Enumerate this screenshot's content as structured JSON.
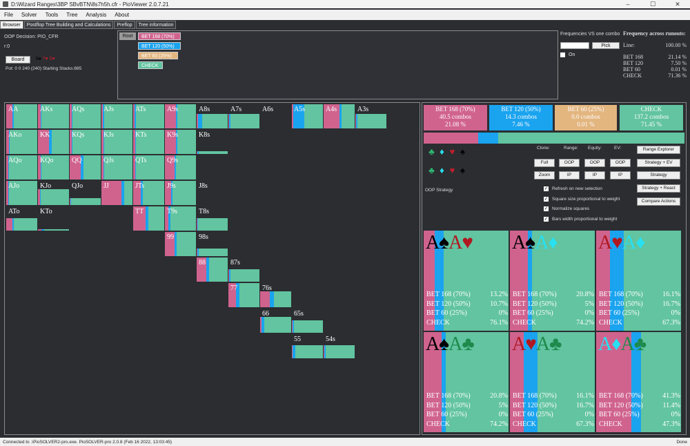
{
  "window": {
    "title": "D:\\Wizard Ranges\\3BP SBvBTN\\8s7h5h.cfr - PioViewer 2.0.7.21",
    "min": "–",
    "max": "☐",
    "close": "✕"
  },
  "menu": [
    "File",
    "Solver",
    "Tools",
    "Tree",
    "Analysis",
    "About"
  ],
  "tabs": [
    "Browser",
    "Postflop Tree Building and Calculations",
    "Preflop",
    "Tree information"
  ],
  "info": {
    "decision": "OOP Decision:  PIO_CFR",
    "r0": "r:0",
    "board_label": "Board",
    "board_cards": [
      "8♠",
      "7♥",
      "5♥"
    ],
    "pot": "Pot: 0 0 240 (240) Starting Stacks:885"
  },
  "tree": {
    "root": "Root",
    "nodes": [
      {
        "label": "BET 168 (70%)",
        "color": "#d0638e"
      },
      {
        "label": "BET 120 (50%)",
        "color": "#1aa3ef"
      },
      {
        "label": "BET 60 (25%)",
        "color": "#e3b57f"
      },
      {
        "label": "CHECK",
        "color": "#62c4a0"
      }
    ]
  },
  "fvc": {
    "title": "Frequencies VS one combo",
    "pick": "Pick",
    "on": "On"
  },
  "far": {
    "title": "Frequency across runouts:",
    "line_label": "Line:",
    "line_value": "100.00 %",
    "rows": [
      {
        "k": "BET 168",
        "v": "21.14 %"
      },
      {
        "k": "BET 120",
        "v": "7.50 %"
      },
      {
        "k": "BET 60",
        "v": "0.01 %"
      },
      {
        "k": "CHECK",
        "v": "71.36 %"
      }
    ]
  },
  "colors": {
    "bet168": "#d0638e",
    "bet120": "#1aa3ef",
    "bet60": "#e3b57f",
    "check": "#62c4a0"
  },
  "grid": [
    {
      "l": "AA",
      "r": 0,
      "c": 0,
      "h": 1,
      "f": [
        0.2,
        0.05,
        0,
        0.75
      ]
    },
    {
      "l": "AKs",
      "r": 0,
      "c": 1,
      "h": 1,
      "f": [
        0.08,
        0.04,
        0,
        0.88
      ]
    },
    {
      "l": "AQs",
      "r": 0,
      "c": 2,
      "h": 1,
      "f": [
        0.06,
        0.03,
        0,
        0.91
      ]
    },
    {
      "l": "AJs",
      "r": 0,
      "c": 3,
      "h": 1,
      "f": [
        0.05,
        0.03,
        0,
        0.92
      ]
    },
    {
      "l": "ATs",
      "r": 0,
      "c": 4,
      "h": 1,
      "f": [
        0.05,
        0.03,
        0,
        0.92
      ]
    },
    {
      "l": "A9s",
      "r": 0,
      "c": 5,
      "h": 1,
      "f": [
        0.35,
        0.05,
        0,
        0.6
      ]
    },
    {
      "l": "A8s",
      "r": 0,
      "c": 6,
      "h": 0.6,
      "f": [
        0.05,
        0.12,
        0,
        0.83
      ]
    },
    {
      "l": "A7s",
      "r": 0,
      "c": 7,
      "h": 0.6,
      "f": [
        0.03,
        0.03,
        0,
        0.94
      ]
    },
    {
      "l": "A6s",
      "r": 0,
      "c": 8,
      "h": 0,
      "f": [
        0,
        0,
        0,
        1
      ]
    },
    {
      "l": "A5s",
      "r": 0,
      "c": 9,
      "h": 1,
      "f": [
        0.05,
        0.35,
        0,
        0.6
      ]
    },
    {
      "l": "A4s",
      "r": 0,
      "c": 10,
      "h": 1,
      "f": [
        0.5,
        0.08,
        0,
        0.42
      ]
    },
    {
      "l": "A3s",
      "r": 0,
      "c": 11,
      "h": 0.6,
      "f": [
        0.03,
        0.03,
        0,
        0.94
      ]
    },
    {
      "l": "AKo",
      "r": 1,
      "c": 0,
      "h": 1,
      "f": [
        0.08,
        0.04,
        0,
        0.88
      ]
    },
    {
      "l": "KK",
      "r": 1,
      "c": 1,
      "h": 1,
      "f": [
        0.35,
        0.1,
        0,
        0.55
      ]
    },
    {
      "l": "KQs",
      "r": 1,
      "c": 2,
      "h": 1,
      "f": [
        0.06,
        0.04,
        0,
        0.9
      ]
    },
    {
      "l": "KJs",
      "r": 1,
      "c": 3,
      "h": 1,
      "f": [
        0.06,
        0.04,
        0,
        0.9
      ]
    },
    {
      "l": "KTs",
      "r": 1,
      "c": 4,
      "h": 1,
      "f": [
        0.06,
        0.04,
        0,
        0.9
      ]
    },
    {
      "l": "K9s",
      "r": 1,
      "c": 5,
      "h": 1,
      "f": [
        0.35,
        0.05,
        0,
        0.6
      ]
    },
    {
      "l": "K8s",
      "r": 1,
      "c": 6,
      "h": 0.12,
      "f": [
        0.02,
        0.05,
        0,
        0.93
      ]
    },
    {
      "l": "AQo",
      "r": 2,
      "c": 0,
      "h": 1,
      "f": [
        0.06,
        0.03,
        0,
        0.91
      ]
    },
    {
      "l": "KQo",
      "r": 2,
      "c": 1,
      "h": 1,
      "f": [
        0.08,
        0.04,
        0,
        0.88
      ]
    },
    {
      "l": "QQ",
      "r": 2,
      "c": 2,
      "h": 1,
      "f": [
        0.35,
        0.1,
        0,
        0.55
      ]
    },
    {
      "l": "QJs",
      "r": 2,
      "c": 3,
      "h": 1,
      "f": [
        0.06,
        0.03,
        0,
        0.91
      ]
    },
    {
      "l": "QTs",
      "r": 2,
      "c": 4,
      "h": 1,
      "f": [
        0.06,
        0.03,
        0,
        0.91
      ]
    },
    {
      "l": "Q9s",
      "r": 2,
      "c": 5,
      "h": 1,
      "f": [
        0.3,
        0.05,
        0,
        0.65
      ]
    },
    {
      "l": "AJo",
      "r": 3,
      "c": 0,
      "h": 1,
      "f": [
        0.06,
        0.03,
        0,
        0.91
      ]
    },
    {
      "l": "KJo",
      "r": 3,
      "c": 1,
      "h": 0.65,
      "f": [
        0.06,
        0.03,
        0,
        0.91
      ]
    },
    {
      "l": "QJo",
      "r": 3,
      "c": 2,
      "h": 0.28,
      "f": [
        0.03,
        0.02,
        0,
        0.95
      ]
    },
    {
      "l": "JJ",
      "r": 3,
      "c": 3,
      "h": 1,
      "f": [
        0.65,
        0.08,
        0,
        0.27
      ]
    },
    {
      "l": "JTs",
      "r": 3,
      "c": 4,
      "h": 1,
      "f": [
        0.25,
        0.05,
        0,
        0.7
      ]
    },
    {
      "l": "J9s",
      "r": 3,
      "c": 5,
      "h": 1,
      "f": [
        0.2,
        0.05,
        0,
        0.75
      ]
    },
    {
      "l": "J8s",
      "r": 3,
      "c": 6,
      "h": 0,
      "f": [
        0,
        0,
        0,
        1
      ]
    },
    {
      "l": "ATo",
      "r": 4,
      "c": 0,
      "h": 0.5,
      "f": [
        0.2,
        0.05,
        0,
        0.75
      ]
    },
    {
      "l": "KTo",
      "r": 4,
      "c": 1,
      "h": 0.05,
      "f": [
        0.1,
        0.1,
        0,
        0.8
      ]
    },
    {
      "l": "TT",
      "r": 4,
      "c": 4,
      "h": 1,
      "f": [
        0.4,
        0.08,
        0,
        0.52
      ]
    },
    {
      "l": "T9s",
      "r": 4,
      "c": 5,
      "h": 1,
      "f": [
        0.1,
        0.08,
        0,
        0.82
      ]
    },
    {
      "l": "T8s",
      "r": 4,
      "c": 6,
      "h": 0.5,
      "f": [
        0.02,
        0.02,
        0,
        0.96
      ]
    },
    {
      "l": "99",
      "r": 5,
      "c": 5,
      "h": 1,
      "f": [
        0.3,
        0.08,
        0,
        0.62
      ]
    },
    {
      "l": "98s",
      "r": 5,
      "c": 6,
      "h": 0.3,
      "f": [
        0.03,
        0.03,
        0,
        0.94
      ]
    },
    {
      "l": "88",
      "r": 6,
      "c": 6,
      "h": 1,
      "f": [
        0.3,
        0.1,
        0,
        0.6
      ]
    },
    {
      "l": "87s",
      "r": 6,
      "c": 7,
      "h": 0.5,
      "f": [
        0.03,
        0.03,
        0,
        0.94
      ]
    },
    {
      "l": "77",
      "r": 7,
      "c": 7,
      "h": 1,
      "f": [
        0.25,
        0.1,
        0,
        0.65
      ]
    },
    {
      "l": "76s",
      "r": 7,
      "c": 8,
      "h": 0.65,
      "f": [
        0.3,
        0.15,
        0,
        0.55
      ]
    },
    {
      "l": "66",
      "r": 8,
      "c": 8,
      "h": 0.65,
      "f": [
        0.05,
        0.08,
        0,
        0.87
      ]
    },
    {
      "l": "65s",
      "r": 8,
      "c": 9,
      "h": 0.5,
      "f": [
        0.03,
        0.03,
        0,
        0.94
      ]
    },
    {
      "l": "55",
      "r": 9,
      "c": 9,
      "h": 0.55,
      "f": [
        0.03,
        0.08,
        0,
        0.89
      ]
    },
    {
      "l": "54s",
      "r": 9,
      "c": 10,
      "h": 0.55,
      "f": [
        0.03,
        0.03,
        0,
        0.94
      ]
    }
  ],
  "actions": [
    {
      "name": "BET 168 (70%)",
      "combos": "40.5 combos",
      "pct": "21.08 %",
      "color": "#d0638e",
      "frac": 0.21
    },
    {
      "name": "BET 120 (50%)",
      "combos": "14.3 combos",
      "pct": "7.46 %",
      "color": "#1aa3ef",
      "frac": 0.075
    },
    {
      "name": "BET 60 (25%)",
      "combos": "0.0 combos",
      "pct": "0.01 %",
      "color": "#e3b57f",
      "frac": 0.0
    },
    {
      "name": "CHECK",
      "combos": "137.2 combos",
      "pct": "71.45 %",
      "color": "#62c4a0",
      "frac": 0.715
    }
  ],
  "controls": {
    "clone": "Clone:",
    "range": "Range:",
    "equity": "Equity:",
    "ev": "EV:",
    "full": "Full",
    "zoom": "Zoom",
    "oop": "OOP",
    "ip": "IP",
    "range_explorer": "Range Explorer",
    "strategy_ev": "Strategy + EV",
    "strategy": "Strategy",
    "strategy_react": "Strategy + React",
    "compare": "Compare Actions",
    "oop_strategy": "OOP Strategy",
    "checks": [
      "Refresh on new selection",
      "Square size proportional to weight",
      "Normalize squares",
      "Bars width proportional to weight"
    ]
  },
  "suits": [
    {
      "g": "♣",
      "color": "#2eb872"
    },
    {
      "g": "♦",
      "color": "#28e0f0"
    },
    {
      "g": "♥",
      "color": "#c0202c"
    },
    {
      "g": "♠",
      "color": "#000000"
    }
  ],
  "runouts": [
    {
      "cards": [
        {
          "t": "A",
          "s": "♠",
          "c": "#000"
        },
        {
          "t": "A",
          "s": "♥",
          "c": "#b01820"
        }
      ],
      "vals": [
        "13.2%",
        "10.7%",
        "0%",
        "76.1%"
      ],
      "f": [
        0.132,
        0.107,
        0,
        0.761
      ]
    },
    {
      "cards": [
        {
          "t": "A",
          "s": "♠",
          "c": "#000"
        },
        {
          "t": "A",
          "s": "♦",
          "c": "#28e0f0"
        }
      ],
      "vals": [
        "20.8%",
        "5%",
        "0%",
        "74.2%"
      ],
      "f": [
        0.208,
        0.05,
        0,
        0.742
      ]
    },
    {
      "cards": [
        {
          "t": "A",
          "s": "♥",
          "c": "#b01820"
        },
        {
          "t": "A",
          "s": "♦",
          "c": "#28e0f0"
        }
      ],
      "vals": [
        "16.1%",
        "16.7%",
        "0%",
        "67.3%"
      ],
      "f": [
        0.161,
        0.167,
        0,
        0.673
      ]
    },
    {
      "cards": [
        {
          "t": "A",
          "s": "♠",
          "c": "#000"
        },
        {
          "t": "A",
          "s": "♣",
          "c": "#1e8a4c"
        }
      ],
      "vals": [
        "20.8%",
        "5%",
        "0%",
        "74.2%"
      ],
      "f": [
        0.208,
        0.05,
        0,
        0.742
      ]
    },
    {
      "cards": [
        {
          "t": "A",
          "s": "♥",
          "c": "#b01820"
        },
        {
          "t": "A",
          "s": "♣",
          "c": "#1e8a4c"
        }
      ],
      "vals": [
        "16.1%",
        "16.7%",
        "0%",
        "67.3%"
      ],
      "f": [
        0.161,
        0.167,
        0,
        0.673
      ]
    },
    {
      "cards": [
        {
          "t": "A",
          "s": "♦",
          "c": "#28e0f0"
        },
        {
          "t": "A",
          "s": "♣",
          "c": "#1e8a4c"
        }
      ],
      "vals": [
        "41.3%",
        "11.4%",
        "0%",
        "47.3%"
      ],
      "f": [
        0.413,
        0.114,
        0,
        0.473
      ]
    }
  ],
  "runout_labels": [
    "BET 168 (70%)",
    "BET 120 (50%)",
    "BET 60 (25%)",
    "CHECK"
  ],
  "status": {
    "left": "Connected to .\\PioSOLVER2-pro.exe. PioSOLVER-pro 2.0.8 (Feb 16 2022, 13:03:45)",
    "right": "Done"
  }
}
